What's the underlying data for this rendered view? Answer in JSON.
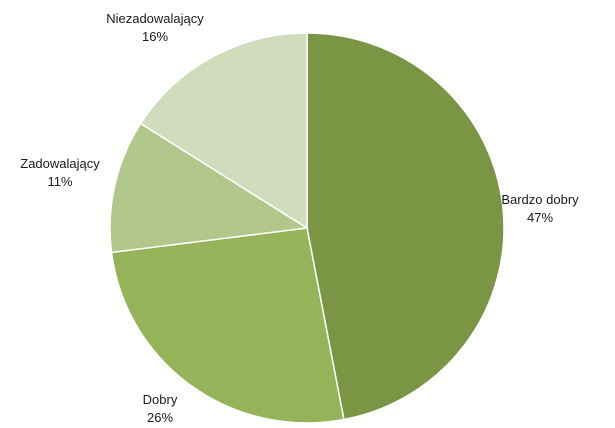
{
  "chart_data": {
    "type": "pie",
    "title": "",
    "start_angle_deg": 0,
    "direction": "clockwise",
    "slices": [
      {
        "label": "Bardzo dobry",
        "value": 47,
        "value_label": "47%",
        "color": "#7a9544"
      },
      {
        "label": "Dobry",
        "value": 26,
        "value_label": "26%",
        "color": "#95b459"
      },
      {
        "label": "Zadowalający",
        "value": 11,
        "value_label": "11%",
        "color": "#b2c78b"
      },
      {
        "label": "Niezadowalający",
        "value": 16,
        "value_label": "16%",
        "color": "#d1dcbd"
      }
    ],
    "legend": "none",
    "labels_position": "outside"
  }
}
